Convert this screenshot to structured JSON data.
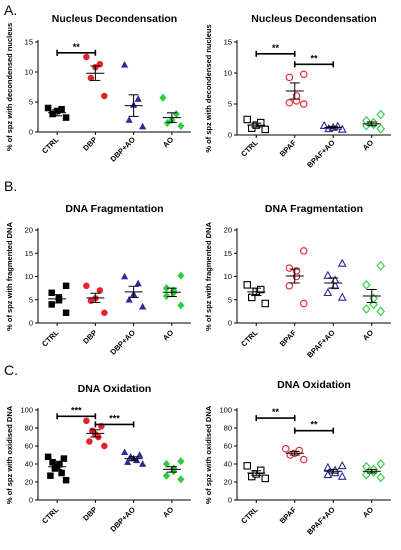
{
  "panel_letters": [
    "A.",
    "B.",
    "C."
  ],
  "chart_data": [
    {
      "type": "scatter",
      "title": "Nucleus Decondensation",
      "ylabel": "% of spz with decondensed nucleus",
      "categories": [
        "CTRL",
        "DBP",
        "DBP+AO",
        "AO"
      ],
      "ylim": [
        0,
        15
      ],
      "yticks": [
        0,
        5,
        10,
        15
      ],
      "markers": [
        "square-filled",
        "circle-filled",
        "triangle-filled",
        "diamond-filled"
      ],
      "colors": [
        "#000000",
        "#e8202a",
        "#2a2a9a",
        "#2ecc40"
      ],
      "points": [
        [
          2.4,
          3.0,
          3.5,
          3.8,
          4.0
        ],
        [
          6.0,
          9.0,
          10.8,
          11.3,
          12.5
        ],
        [
          0.9,
          2.0,
          4.5,
          5.5,
          11.2
        ],
        [
          1.0,
          1.5,
          2.0,
          3.0,
          5.7
        ]
      ],
      "means": [
        3.2,
        9.8,
        4.4,
        2.4
      ],
      "sem": [
        0.5,
        1.2,
        1.8,
        0.8
      ],
      "significance": [
        {
          "from": 0,
          "to": 1,
          "y": 13.2,
          "label": "**"
        }
      ]
    },
    {
      "type": "scatter",
      "title": "Nucleus Decondensation",
      "ylabel": "% of spz with decondensed nucleus",
      "categories": [
        "CTRL",
        "BPAF",
        "BPAF+AO",
        "AO"
      ],
      "ylim": [
        0,
        15
      ],
      "yticks": [
        0,
        5,
        10,
        15
      ],
      "markers": [
        "square-open",
        "circle-open",
        "triangle-open",
        "diamond-open"
      ],
      "colors": [
        "#000000",
        "#e8202a",
        "#2a2a9a",
        "#2ecc40"
      ],
      "points": [
        [
          0.9,
          1.1,
          1.6,
          2.0,
          2.5
        ],
        [
          5.0,
          5.2,
          5.5,
          6.3,
          9.3,
          9.8
        ],
        [
          0.9,
          1.0,
          1.2,
          1.4,
          1.5
        ],
        [
          1.0,
          1.5,
          1.7,
          2.0,
          2.3,
          3.3
        ]
      ],
      "means": [
        1.6,
        7.1,
        1.2,
        1.8
      ],
      "sem": [
        0.3,
        1.3,
        0.2,
        0.3
      ],
      "significance": [
        {
          "from": 0,
          "to": 1,
          "y": 13.1,
          "label": "**"
        },
        {
          "from": 1,
          "to": 2,
          "y": 11.4,
          "label": "**"
        }
      ]
    },
    {
      "type": "scatter",
      "title": "DNA Fragmentation",
      "ylabel": "% of spz with fragmented DNA",
      "categories": [
        "CTRL",
        "DBP",
        "DBP+AO",
        "AO"
      ],
      "ylim": [
        0,
        20
      ],
      "yticks": [
        0,
        5,
        10,
        15,
        20
      ],
      "markers": [
        "square-filled",
        "circle-filled",
        "triangle-filled",
        "diamond-filled"
      ],
      "colors": [
        "#000000",
        "#e8202a",
        "#2a2a9a",
        "#2ecc40"
      ],
      "points": [
        [
          2.2,
          4.0,
          5.0,
          5.4,
          6.5,
          8.0
        ],
        [
          2.2,
          4.8,
          5.3,
          7.0,
          8.0
        ],
        [
          3.5,
          5.0,
          6.2,
          8.5,
          10.0
        ],
        [
          3.8,
          5.8,
          6.5,
          7.0,
          7.5,
          10.2
        ]
      ],
      "means": [
        5.2,
        5.4,
        6.7,
        6.6
      ],
      "sem": [
        0.9,
        1.0,
        1.2,
        0.9
      ],
      "significance": []
    },
    {
      "type": "scatter",
      "title": "DNA Fragmentation",
      "ylabel": "% of spz with fragmented DNA",
      "categories": [
        "CTRL",
        "BPAF",
        "BPAF+AO",
        "AO"
      ],
      "ylim": [
        0,
        20
      ],
      "yticks": [
        0,
        5,
        10,
        15,
        20
      ],
      "markers": [
        "square-open",
        "circle-open",
        "triangle-open",
        "diamond-open"
      ],
      "colors": [
        "#000000",
        "#e8202a",
        "#2a2a9a",
        "#2ecc40"
      ],
      "points": [
        [
          4.2,
          5.5,
          6.8,
          7.2,
          8.2
        ],
        [
          4.2,
          8.0,
          10.0,
          11.2,
          11.8,
          15.5
        ],
        [
          5.5,
          6.5,
          8.0,
          9.2,
          10.2,
          12.8
        ],
        [
          2.5,
          3.0,
          4.0,
          5.3,
          8.2,
          12.3
        ]
      ],
      "means": [
        6.7,
        10.1,
        8.6,
        5.8
      ],
      "sem": [
        0.8,
        1.5,
        1.1,
        1.4
      ],
      "significance": []
    },
    {
      "type": "scatter",
      "title": "DNA Oxidation",
      "ylabel": "% of spz with oxidised DNA",
      "categories": [
        "CTRL",
        "DBP",
        "DBP+AO",
        "AO"
      ],
      "ylim": [
        0,
        100
      ],
      "yticks": [
        0,
        20,
        40,
        60,
        80,
        100
      ],
      "markers": [
        "square-filled",
        "circle-filled",
        "triangle-filled",
        "diamond-filled"
      ],
      "colors": [
        "#000000",
        "#e8202a",
        "#2a2a9a",
        "#2ecc40"
      ],
      "points": [
        [
          22,
          27,
          30,
          35,
          37,
          40,
          42,
          46,
          48
        ],
        [
          60,
          65,
          70,
          73,
          77,
          82,
          88
        ],
        [
          40,
          42,
          44,
          46,
          48,
          50,
          53
        ],
        [
          23,
          27,
          32,
          35,
          40,
          43
        ]
      ],
      "means": [
        37,
        74,
        46,
        34
      ],
      "sem": [
        3,
        4,
        2,
        3
      ],
      "significance": [
        {
          "from": 0,
          "to": 1,
          "y": 93,
          "label": "***"
        },
        {
          "from": 1,
          "to": 2,
          "y": 84,
          "label": "***"
        }
      ]
    },
    {
      "type": "scatter",
      "title": "DNA Oxidation",
      "ylabel": "% of spz with oxidised DNA",
      "categories": [
        "CTRL",
        "BPAF",
        "BPAF+AO",
        "AO"
      ],
      "ylim": [
        0,
        100
      ],
      "yticks": [
        0,
        20,
        40,
        60,
        80,
        100
      ],
      "markers": [
        "square-open",
        "circle-open",
        "triangle-open",
        "diamond-open"
      ],
      "colors": [
        "#000000",
        "#e8202a",
        "#2a2a9a",
        "#2ecc40"
      ],
      "points": [
        [
          24,
          26,
          29,
          33,
          38
        ],
        [
          45,
          50,
          52,
          55,
          57
        ],
        [
          26,
          28,
          30,
          33,
          36,
          38
        ],
        [
          25,
          28,
          31,
          34,
          37,
          40
        ]
      ],
      "means": [
        30,
        52,
        32,
        32
      ],
      "sem": [
        2.5,
        2,
        2,
        2
      ],
      "significance": [
        {
          "from": 0,
          "to": 1,
          "y": 91,
          "label": "**"
        },
        {
          "from": 1,
          "to": 2,
          "y": 77,
          "label": "**"
        }
      ]
    }
  ]
}
